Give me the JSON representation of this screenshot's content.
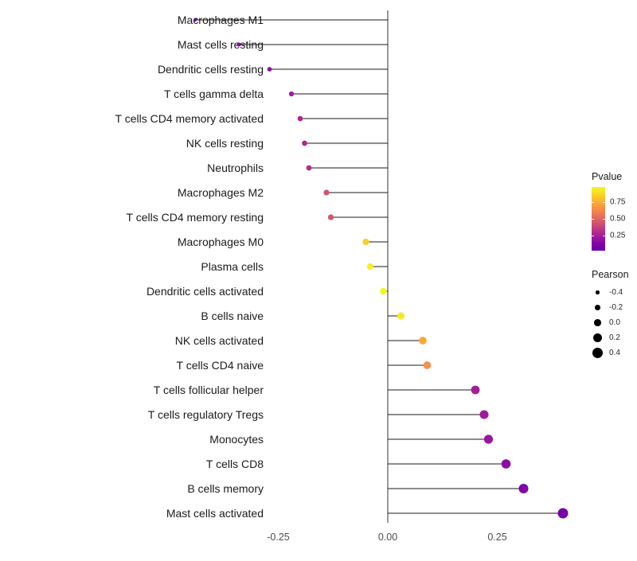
{
  "chart_data": {
    "type": "scatter",
    "variant": "lollipop",
    "orientation": "horizontal",
    "title": "",
    "xlabel": "",
    "ylabel": "",
    "grid": false,
    "xlim": [
      -0.48,
      0.44
    ],
    "x_ticks": [
      {
        "value": -0.25,
        "label": "-0.25"
      },
      {
        "value": 0.0,
        "label": "0.00"
      },
      {
        "value": 0.25,
        "label": "0.25"
      }
    ],
    "points": [
      {
        "label": "Macrophages M1",
        "pearson": -0.44,
        "pvalue": 0.04,
        "color": "#7102A8"
      },
      {
        "label": "Mast cells resting",
        "pearson": -0.34,
        "pvalue": 0.1,
        "color": "#8304A7"
      },
      {
        "label": "Dendritic cells resting",
        "pearson": -0.27,
        "pvalue": 0.19,
        "color": "#9410A2"
      },
      {
        "label": "T cells gamma delta",
        "pearson": -0.22,
        "pvalue": 0.26,
        "color": "#A01A9C"
      },
      {
        "label": "T cells CD4 memory activated",
        "pearson": -0.2,
        "pvalue": 0.31,
        "color": "#A92394"
      },
      {
        "label": "NK cells resting",
        "pearson": -0.19,
        "pvalue": 0.33,
        "color": "#AE268F"
      },
      {
        "label": "Neutrophils",
        "pearson": -0.18,
        "pvalue": 0.37,
        "color": "#B62E88"
      },
      {
        "label": "Macrophages M2",
        "pearson": -0.14,
        "pvalue": 0.54,
        "color": "#D4526F"
      },
      {
        "label": "T cells CD4 memory resting",
        "pearson": -0.13,
        "pvalue": 0.56,
        "color": "#D8566B"
      },
      {
        "label": "Macrophages M0",
        "pearson": -0.05,
        "pvalue": 0.87,
        "color": "#FACD29"
      },
      {
        "label": "Plasma cells",
        "pearson": -0.04,
        "pvalue": 0.94,
        "color": "#F3F027"
      },
      {
        "label": "Dendritic cells activated",
        "pearson": -0.01,
        "pvalue": 0.97,
        "color": "#F0F921"
      },
      {
        "label": "B cells naive",
        "pearson": 0.03,
        "pvalue": 0.92,
        "color": "#F5E926"
      },
      {
        "label": "NK cells activated",
        "pearson": 0.08,
        "pvalue": 0.79,
        "color": "#FCA636"
      },
      {
        "label": "T cells CD4 naive",
        "pearson": 0.09,
        "pvalue": 0.72,
        "color": "#F5914D"
      },
      {
        "label": "T cells follicular helper",
        "pearson": 0.2,
        "pvalue": 0.28,
        "color": "#A41E99"
      },
      {
        "label": "T cells regulatory Tregs",
        "pearson": 0.22,
        "pvalue": 0.26,
        "color": "#A01A9C"
      },
      {
        "label": "Monocytes",
        "pearson": 0.23,
        "pvalue": 0.22,
        "color": "#9A14A0"
      },
      {
        "label": "T cells CD8",
        "pearson": 0.27,
        "pvalue": 0.15,
        "color": "#8D0BA5"
      },
      {
        "label": "B cells memory",
        "pearson": 0.31,
        "pvalue": 0.1,
        "color": "#8304A7"
      },
      {
        "label": "Mast cells activated",
        "pearson": 0.4,
        "pvalue": 0.05,
        "color": "#7702A8"
      }
    ],
    "legend": {
      "pvalue": {
        "title": "Pvalue",
        "labels": [
          "0.75",
          "0.50",
          "0.25"
        ],
        "gradient": [
          "#F0F921",
          "#FADA24",
          "#FCB92F",
          "#F99A3E",
          "#F07F4F",
          "#E16462",
          "#CC4977",
          "#B42E8B",
          "#9A169F",
          "#7F03A8",
          "#6A00A8"
        ]
      },
      "pearson": {
        "title": "Pearson",
        "entries": [
          {
            "label": "-0.4",
            "value": -0.4
          },
          {
            "label": "-0.2",
            "value": -0.2
          },
          {
            "label": "0.0",
            "value": 0.0
          },
          {
            "label": "0.2",
            "value": 0.2
          },
          {
            "label": "0.4",
            "value": 0.4
          }
        ]
      }
    },
    "colors": {
      "axis_line": "#000000",
      "stick": "#1a1a1a",
      "tick_text": "#4d4d4d",
      "label_text": "#1a1a1a",
      "size_dot": "#000000"
    }
  }
}
